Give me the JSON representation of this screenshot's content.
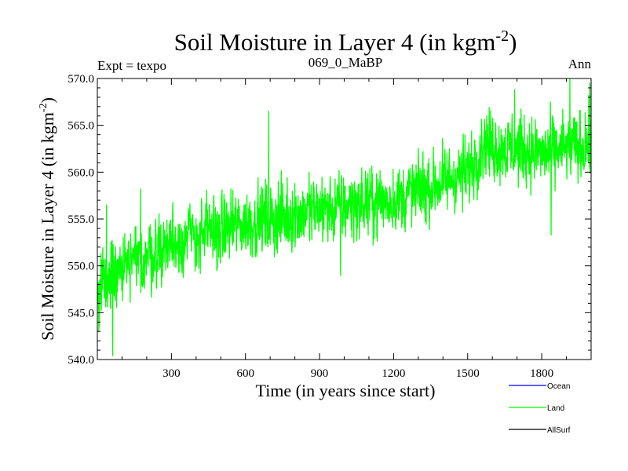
{
  "chart_data": {
    "type": "line",
    "title": "Soil Moisture in Layer 4 (in kgm",
    "title_sup": "-2",
    "title_end": ")",
    "subtitle_left": "Expt = texpo",
    "subtitle_center": "069_0_MaBP",
    "subtitle_right": "Ann",
    "xlabel": "Time (in years since start)",
    "ylabel": "Soil Moisture in Layer 4 (in kgm",
    "ylabel_sup": "-2",
    "ylabel_end": ")",
    "xlim": [
      0,
      2000
    ],
    "ylim": [
      540,
      570
    ],
    "x_ticks": [
      300,
      600,
      900,
      1200,
      1500,
      1800
    ],
    "x_tick_labels": [
      "300",
      "600",
      "900",
      "1200",
      "1500",
      "1800"
    ],
    "y_ticks": [
      540,
      545,
      550,
      555,
      560,
      565,
      570
    ],
    "y_tick_labels": [
      "540.0",
      "545.0",
      "550.0",
      "555.0",
      "560.0",
      "565.0",
      "570.0"
    ],
    "grid": false,
    "legend": [
      {
        "name": "Ocean",
        "color": "#0000ff"
      },
      {
        "name": "Land",
        "color": "#00ff00"
      },
      {
        "name": "AllSurf",
        "color": "#000000"
      }
    ],
    "series": [
      {
        "name": "Land",
        "color": "#00ff00",
        "x_start": 0,
        "x_step": 1,
        "trend_points": [
          [
            0,
            547.5
          ],
          [
            100,
            549.5
          ],
          [
            300,
            552.5
          ],
          [
            600,
            554.5
          ],
          [
            900,
            556.0
          ],
          [
            1200,
            557.0
          ],
          [
            1500,
            560.0
          ],
          [
            1560,
            563.0
          ],
          [
            1800,
            562.0
          ],
          [
            2000,
            563.0
          ]
        ],
        "noise_amplitude": 2.3,
        "extremes": [
          [
            6,
            543.0
          ],
          [
            37,
            556.5
          ],
          [
            62,
            540.4
          ],
          [
            175,
            558.2
          ],
          [
            694,
            566.5
          ],
          [
            985,
            549.0
          ],
          [
            1577,
            566.0
          ],
          [
            1690,
            568.8
          ],
          [
            1838,
            553.3
          ],
          [
            1914,
            569.9
          ],
          [
            1995,
            569.5
          ]
        ],
        "seed": 69
      }
    ]
  }
}
